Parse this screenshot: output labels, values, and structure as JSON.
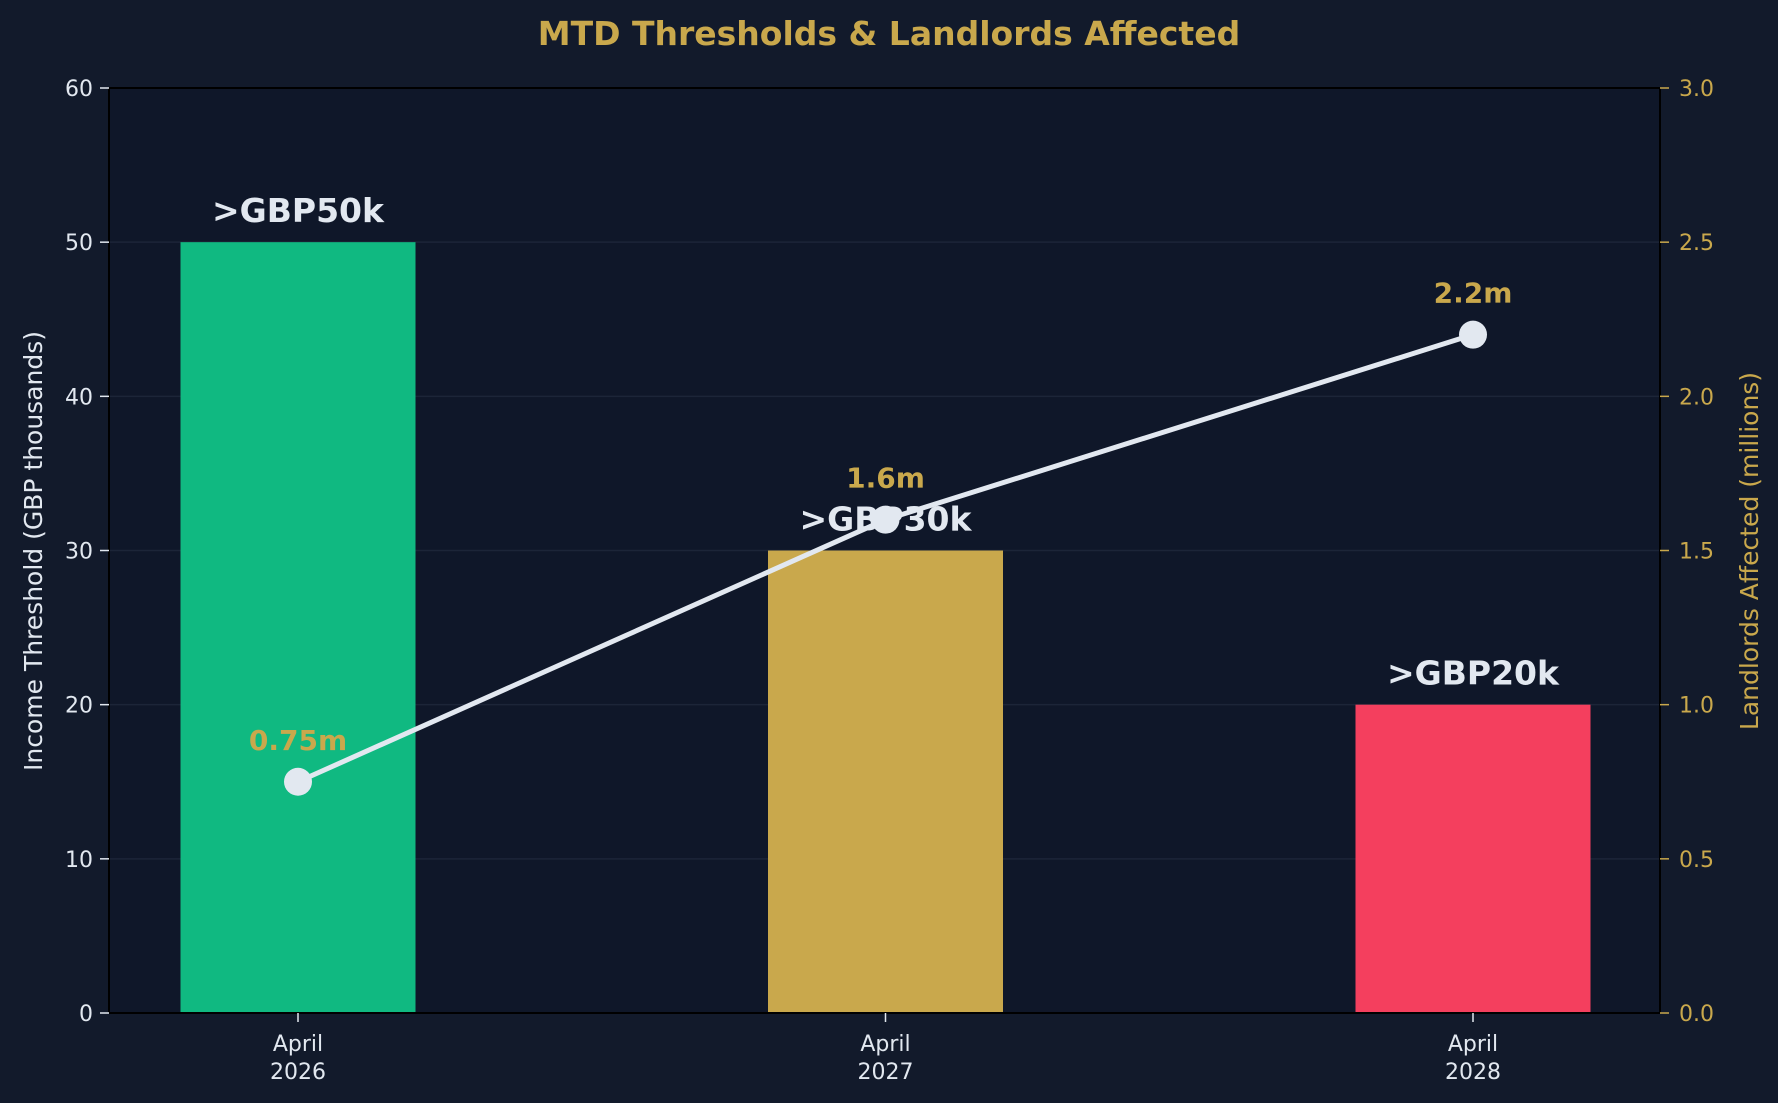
{
  "chart_data": {
    "type": "bar",
    "title": "MTD Thresholds & Landlords Affected",
    "categories": [
      [
        "April",
        "2026"
      ],
      [
        "April",
        "2027"
      ],
      [
        "April",
        "2028"
      ]
    ],
    "series": [
      {
        "kind": "bar",
        "axis": "left",
        "values": [
          50,
          30,
          20
        ],
        "labels": [
          ">GBP50k",
          ">GBP30k",
          ">GBP20k"
        ],
        "colors": [
          "#10b981",
          "#c9a84c",
          "#f43f5e"
        ]
      },
      {
        "kind": "line",
        "axis": "right",
        "values": [
          0.75,
          1.6,
          2.2
        ],
        "labels": [
          "0.75m",
          "1.6m",
          "2.2m"
        ],
        "color": "#e2e8f0"
      }
    ],
    "y_left": {
      "label": "Income Threshold (GBP thousands)",
      "lim": [
        0,
        60
      ],
      "ticks": [
        "0",
        "10",
        "20",
        "30",
        "40",
        "50",
        "60"
      ]
    },
    "y_right": {
      "label": "Landlords Affected (millions)",
      "lim": [
        0,
        3.0
      ],
      "ticks": [
        "0.0",
        "0.5",
        "1.0",
        "1.5",
        "2.0",
        "2.5",
        "3.0"
      ]
    },
    "grid": true,
    "colors": {
      "background": "#121a2b",
      "plot_background": "#0f1729",
      "title": "#c9a84c",
      "left_axis_text": "#e2e8f0",
      "right_axis_text": "#c9a84c",
      "line_label": "#c9a84c",
      "bar_label": "#e2e8f0",
      "grid": "#1c2538"
    }
  }
}
